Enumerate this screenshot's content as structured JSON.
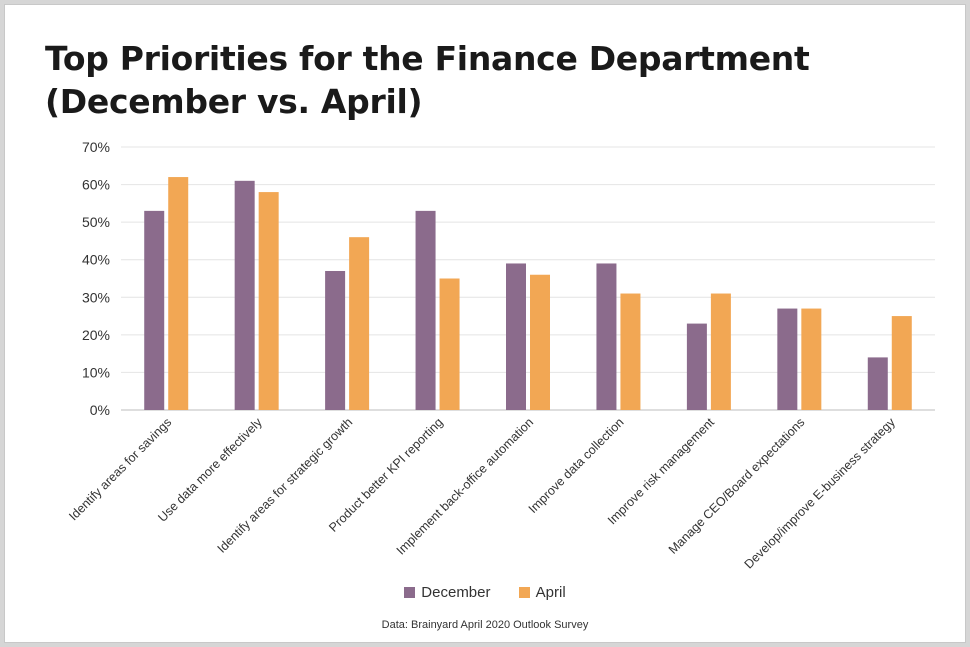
{
  "chart_data": {
    "type": "bar",
    "title_line1": "Top Priorities for the Finance Department",
    "title_line2": "(December vs. April)",
    "categories": [
      "Identify areas for savings",
      "Use data more effectively",
      "Identify areas for strategic growth",
      "Product better KPI reporting",
      "Implement back-office automation",
      "Improve data collection",
      "Improve risk management",
      "Manage CEO/Board expectations",
      "Develop/improve E-business strategy"
    ],
    "series": [
      {
        "name": "December",
        "color": "#8b6b8c",
        "values": [
          53,
          61,
          37,
          53,
          39,
          39,
          23,
          27,
          14
        ]
      },
      {
        "name": "April",
        "color": "#f2a754",
        "values": [
          62,
          58,
          46,
          35,
          36,
          31,
          31,
          27,
          25
        ]
      }
    ],
    "ylim": [
      0,
      70
    ],
    "yticks": [
      0,
      10,
      20,
      30,
      40,
      50,
      60,
      70
    ],
    "ytick_labels": [
      "0%",
      "10%",
      "20%",
      "30%",
      "40%",
      "50%",
      "60%",
      "70%"
    ],
    "grid": true,
    "legend_position": "bottom-center",
    "source": "Data: Brainyard April 2020 Outlook Survey"
  }
}
